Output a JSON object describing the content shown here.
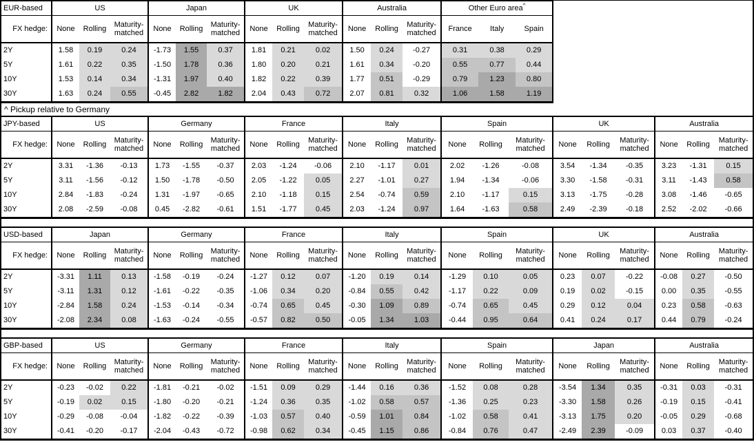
{
  "footnote": "^ Pickup relative to Germany",
  "fx_hedge_label": "FX hedge:",
  "maturity_rows": [
    "2Y",
    "5Y",
    "10Y",
    "30Y"
  ],
  "default_columns": [
    "None",
    "Rolling",
    "Maturity-matched"
  ],
  "shading": {
    "negative": null,
    "low": "#d9d9d9",
    "mid": "#c4c4c4",
    "high": "#a9a9a9",
    "thresholds": [
      0,
      0.5,
      1.0
    ]
  },
  "tables": [
    {
      "base": "EUR-based",
      "groups": [
        {
          "name": "US",
          "values": [
            [
              1.58,
              0.19,
              0.24
            ],
            [
              1.61,
              0.22,
              0.35
            ],
            [
              1.53,
              0.14,
              0.34
            ],
            [
              1.63,
              0.24,
              0.55
            ]
          ]
        },
        {
          "name": "Japan",
          "values": [
            [
              -1.73,
              1.55,
              0.37
            ],
            [
              -1.5,
              1.78,
              0.36
            ],
            [
              -1.31,
              1.97,
              0.4
            ],
            [
              -0.45,
              2.82,
              1.82
            ]
          ]
        },
        {
          "name": "UK",
          "values": [
            [
              1.81,
              0.21,
              0.02
            ],
            [
              1.8,
              0.2,
              0.21
            ],
            [
              1.82,
              0.22,
              0.39
            ],
            [
              2.04,
              0.43,
              0.72
            ]
          ]
        },
        {
          "name": "Australia",
          "values": [
            [
              1.5,
              0.24,
              -0.27
            ],
            [
              1.61,
              0.34,
              -0.2
            ],
            [
              1.77,
              0.51,
              -0.29
            ],
            [
              2.07,
              0.81,
              0.32
            ]
          ]
        },
        {
          "name": "Other Euro area",
          "footnote_mark": "^",
          "columns": [
            "France",
            "Italy",
            "Spain"
          ],
          "shade_all": true,
          "values": [
            [
              0.31,
              0.38,
              0.29
            ],
            [
              0.55,
              0.77,
              0.44
            ],
            [
              0.79,
              1.23,
              0.8
            ],
            [
              1.06,
              1.58,
              1.19
            ]
          ]
        }
      ]
    },
    {
      "base": "JPY-based",
      "groups": [
        {
          "name": "US",
          "values": [
            [
              3.31,
              -1.36,
              -0.13
            ],
            [
              3.11,
              -1.56,
              -0.12
            ],
            [
              2.84,
              -1.83,
              -0.24
            ],
            [
              2.08,
              -2.59,
              -0.08
            ]
          ]
        },
        {
          "name": "Germany",
          "values": [
            [
              1.73,
              -1.55,
              -0.37
            ],
            [
              1.5,
              -1.78,
              -0.5
            ],
            [
              1.31,
              -1.97,
              -0.65
            ],
            [
              0.45,
              -2.82,
              -0.61
            ]
          ]
        },
        {
          "name": "France",
          "values": [
            [
              2.03,
              -1.24,
              -0.06
            ],
            [
              2.05,
              -1.22,
              0.05
            ],
            [
              2.1,
              -1.18,
              0.15
            ],
            [
              1.51,
              -1.77,
              0.45
            ]
          ]
        },
        {
          "name": "Italy",
          "values": [
            [
              2.1,
              -1.17,
              0.01
            ],
            [
              2.27,
              -1.01,
              0.27
            ],
            [
              2.54,
              -0.74,
              0.59
            ],
            [
              2.03,
              -1.24,
              0.97
            ]
          ]
        },
        {
          "name": "Spain",
          "values": [
            [
              2.02,
              -1.26,
              -0.08
            ],
            [
              1.94,
              -1.34,
              -0.06
            ],
            [
              2.1,
              -1.17,
              0.15
            ],
            [
              1.64,
              -1.63,
              0.58
            ]
          ]
        },
        {
          "name": "UK",
          "values": [
            [
              3.54,
              -1.34,
              -0.35
            ],
            [
              3.3,
              -1.58,
              -0.31
            ],
            [
              3.13,
              -1.75,
              -0.28
            ],
            [
              2.49,
              -2.39,
              -0.18
            ]
          ]
        },
        {
          "name": "Australia",
          "values": [
            [
              3.23,
              -1.31,
              0.15
            ],
            [
              3.11,
              -1.43,
              0.58
            ],
            [
              3.08,
              -1.46,
              -0.65
            ],
            [
              2.52,
              -2.02,
              -0.66
            ]
          ]
        }
      ]
    },
    {
      "base": "USD-based",
      "groups": [
        {
          "name": "Japan",
          "values": [
            [
              -3.31,
              1.11,
              0.13
            ],
            [
              -3.11,
              1.31,
              0.12
            ],
            [
              -2.84,
              1.58,
              0.24
            ],
            [
              -2.08,
              2.34,
              0.08
            ]
          ]
        },
        {
          "name": "Germany",
          "values": [
            [
              -1.58,
              -0.19,
              -0.24
            ],
            [
              -1.61,
              -0.22,
              -0.35
            ],
            [
              -1.53,
              -0.14,
              -0.34
            ],
            [
              -1.63,
              -0.24,
              -0.55
            ]
          ]
        },
        {
          "name": "France",
          "values": [
            [
              -1.27,
              0.12,
              0.07
            ],
            [
              -1.06,
              0.34,
              0.2
            ],
            [
              -0.74,
              0.65,
              0.45
            ],
            [
              -0.57,
              0.82,
              0.5
            ]
          ]
        },
        {
          "name": "Italy",
          "values": [
            [
              -1.2,
              0.19,
              0.14
            ],
            [
              -0.84,
              0.55,
              0.42
            ],
            [
              -0.3,
              1.09,
              0.89
            ],
            [
              -0.05,
              1.34,
              1.03
            ]
          ]
        },
        {
          "name": "Spain",
          "values": [
            [
              -1.29,
              0.1,
              0.05
            ],
            [
              -1.17,
              0.22,
              0.09
            ],
            [
              -0.74,
              0.65,
              0.45
            ],
            [
              -0.44,
              0.95,
              0.64
            ]
          ]
        },
        {
          "name": "UK",
          "values": [
            [
              0.23,
              0.07,
              -0.22
            ],
            [
              0.19,
              0.02,
              -0.15
            ],
            [
              0.29,
              0.12,
              0.04
            ],
            [
              0.41,
              0.24,
              0.17
            ]
          ]
        },
        {
          "name": "Australia",
          "values": [
            [
              -0.08,
              0.27,
              -0.5
            ],
            [
              0.0,
              0.35,
              -0.55
            ],
            [
              0.23,
              0.58,
              -0.63
            ],
            [
              0.44,
              0.79,
              -0.24
            ]
          ]
        }
      ]
    },
    {
      "base": "GBP-based",
      "groups": [
        {
          "name": "US",
          "values": [
            [
              -0.23,
              -0.02,
              0.22
            ],
            [
              -0.19,
              0.02,
              0.15
            ],
            [
              -0.29,
              -0.08,
              -0.04
            ],
            [
              -0.41,
              -0.2,
              -0.17
            ]
          ]
        },
        {
          "name": "Germany",
          "values": [
            [
              -1.81,
              -0.21,
              -0.02
            ],
            [
              -1.8,
              -0.2,
              -0.21
            ],
            [
              -1.82,
              -0.22,
              -0.39
            ],
            [
              -2.04,
              -0.43,
              -0.72
            ]
          ]
        },
        {
          "name": "France",
          "values": [
            [
              -1.51,
              0.09,
              0.29
            ],
            [
              -1.24,
              0.36,
              0.35
            ],
            [
              -1.03,
              0.57,
              0.4
            ],
            [
              -0.98,
              0.62,
              0.34
            ]
          ]
        },
        {
          "name": "Italy",
          "values": [
            [
              -1.44,
              0.16,
              0.36
            ],
            [
              -1.02,
              0.58,
              0.57
            ],
            [
              -0.59,
              1.01,
              0.84
            ],
            [
              -0.45,
              1.15,
              0.86
            ]
          ]
        },
        {
          "name": "Spain",
          "values": [
            [
              -1.52,
              0.08,
              0.28
            ],
            [
              -1.36,
              0.25,
              0.23
            ],
            [
              -1.02,
              0.58,
              0.41
            ],
            [
              -0.84,
              0.76,
              0.47
            ]
          ]
        },
        {
          "name": "Japan",
          "values": [
            [
              -3.54,
              1.34,
              0.35
            ],
            [
              -3.3,
              1.58,
              0.26
            ],
            [
              -3.13,
              1.75,
              0.2
            ],
            [
              -2.49,
              2.39,
              -0.09
            ]
          ]
        },
        {
          "name": "Australia",
          "values": [
            [
              -0.31,
              0.03,
              -0.31
            ],
            [
              -0.19,
              0.15,
              -0.41
            ],
            [
              -0.05,
              0.29,
              -0.68
            ],
            [
              0.03,
              0.37,
              -0.4
            ]
          ]
        }
      ]
    }
  ]
}
